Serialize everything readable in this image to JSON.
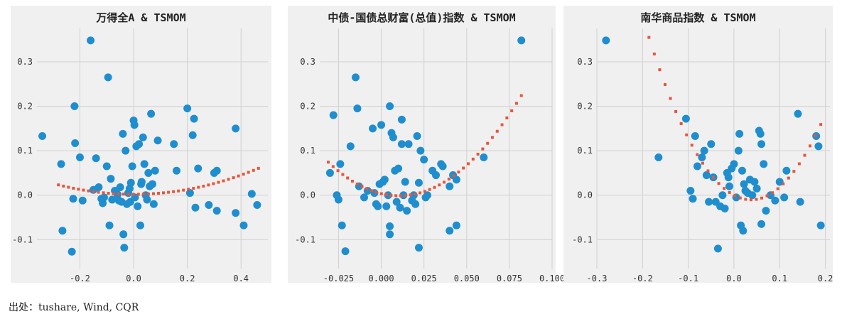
{
  "source_note": "出处：tushare, Wind, CQR",
  "colors": {
    "scatter": "#1f8ecf",
    "fit": "#e8553a"
  },
  "chart_data": [
    {
      "type": "scatter",
      "title": "万得全A & TSMOM",
      "xlim": [
        -0.36,
        0.5
      ],
      "ylim": [
        -0.165,
        0.375
      ],
      "xticks": [
        -0.2,
        0.0,
        0.2,
        0.4
      ],
      "xtick_labels": [
        "-0.2",
        "0.0",
        "0.2",
        "0.4"
      ],
      "yticks": [
        -0.1,
        0.0,
        0.1,
        0.2,
        0.3
      ],
      "ytick_labels": [
        "-0.1",
        "0.0",
        "0.1",
        "0.2",
        "0.3"
      ],
      "grid": true,
      "points": [
        [
          -0.34,
          0.133
        ],
        [
          -0.27,
          0.07
        ],
        [
          -0.265,
          -0.08
        ],
        [
          -0.23,
          -0.127
        ],
        [
          -0.225,
          -0.008
        ],
        [
          -0.22,
          0.2
        ],
        [
          -0.218,
          0.117
        ],
        [
          -0.2,
          0.085
        ],
        [
          -0.19,
          -0.012
        ],
        [
          -0.16,
          0.348
        ],
        [
          -0.15,
          0.012
        ],
        [
          -0.14,
          0.083
        ],
        [
          -0.13,
          0.018
        ],
        [
          -0.12,
          -0.008
        ],
        [
          -0.115,
          -0.018
        ],
        [
          -0.11,
          -0.005
        ],
        [
          -0.1,
          0.065
        ],
        [
          -0.095,
          0.265
        ],
        [
          -0.09,
          -0.068
        ],
        [
          -0.085,
          0.037
        ],
        [
          -0.08,
          -0.01
        ],
        [
          -0.07,
          0.01
        ],
        [
          -0.06,
          0.002
        ],
        [
          -0.055,
          -0.012
        ],
        [
          -0.05,
          0.018
        ],
        [
          -0.045,
          -0.015
        ],
        [
          -0.04,
          0.138
        ],
        [
          -0.038,
          -0.088
        ],
        [
          -0.035,
          -0.118
        ],
        [
          -0.03,
          0.1
        ],
        [
          -0.025,
          -0.02
        ],
        [
          -0.02,
          0.005
        ],
        [
          -0.015,
          0.015
        ],
        [
          -0.012,
          -0.015
        ],
        [
          -0.01,
          0.028
        ],
        [
          -0.005,
          0.065
        ],
        [
          0.0,
          0.168
        ],
        [
          0.003,
          0.158
        ],
        [
          0.005,
          -0.005
        ],
        [
          0.01,
          0.11
        ],
        [
          0.015,
          -0.025
        ],
        [
          0.02,
          0.115
        ],
        [
          0.025,
          -0.068
        ],
        [
          0.028,
          0.025
        ],
        [
          0.03,
          0.03
        ],
        [
          0.035,
          0.13
        ],
        [
          0.04,
          0.07
        ],
        [
          0.045,
          0.0
        ],
        [
          0.05,
          -0.01
        ],
        [
          0.055,
          0.05
        ],
        [
          0.06,
          0.02
        ],
        [
          0.065,
          0.183
        ],
        [
          0.07,
          0.025
        ],
        [
          0.075,
          -0.02
        ],
        [
          0.08,
          0.055
        ],
        [
          0.09,
          0.123
        ],
        [
          0.15,
          0.115
        ],
        [
          0.16,
          0.055
        ],
        [
          0.2,
          0.195
        ],
        [
          0.21,
          0.005
        ],
        [
          0.22,
          0.135
        ],
        [
          0.225,
          0.172
        ],
        [
          0.23,
          -0.028
        ],
        [
          0.24,
          0.06
        ],
        [
          0.28,
          -0.022
        ],
        [
          0.3,
          0.05
        ],
        [
          0.31,
          0.055
        ],
        [
          0.31,
          -0.035
        ],
        [
          0.38,
          0.15
        ],
        [
          0.38,
          -0.04
        ],
        [
          0.41,
          -0.068
        ],
        [
          0.44,
          0.003
        ],
        [
          0.46,
          -0.022
        ]
      ],
      "fit": {
        "x_range": [
          -0.28,
          0.465
        ],
        "coefficients": [
          0.002,
          0.0,
          0.27
        ]
      }
    },
    {
      "type": "scatter",
      "title": "中债-国债总财富(总值)指数 & TSMOM",
      "xlim": [
        -0.036,
        0.1
      ],
      "ylim": [
        -0.165,
        0.375
      ],
      "xticks": [
        -0.025,
        0.0,
        0.025,
        0.05,
        0.075,
        0.1
      ],
      "xtick_labels": [
        "-0.025",
        "0.000",
        "0.025",
        "0.050",
        "0.075",
        "0.100"
      ],
      "yticks": [
        -0.1,
        0.0,
        0.1,
        0.2,
        0.3
      ],
      "ytick_labels": [
        "-0.1",
        "0.0",
        "0.1",
        "0.2",
        "0.3"
      ],
      "grid": true,
      "points": [
        [
          -0.03,
          0.05
        ],
        [
          -0.028,
          0.18
        ],
        [
          -0.026,
          0.0
        ],
        [
          -0.025,
          -0.01
        ],
        [
          -0.024,
          0.07
        ],
        [
          -0.023,
          -0.068
        ],
        [
          -0.021,
          -0.126
        ],
        [
          -0.018,
          0.11
        ],
        [
          -0.015,
          0.265
        ],
        [
          -0.014,
          0.195
        ],
        [
          -0.013,
          0.02
        ],
        [
          -0.01,
          -0.005
        ],
        [
          -0.008,
          0.01
        ],
        [
          -0.005,
          0.15
        ],
        [
          -0.004,
          0.005
        ],
        [
          -0.003,
          -0.02
        ],
        [
          -0.002,
          -0.025
        ],
        [
          -0.001,
          0.025
        ],
        [
          0.0,
          0.158
        ],
        [
          0.001,
          0.03
        ],
        [
          0.002,
          0.035
        ],
        [
          0.003,
          -0.025
        ],
        [
          0.004,
          0.0
        ],
        [
          0.005,
          0.2
        ],
        [
          0.005,
          -0.07
        ],
        [
          0.005,
          -0.088
        ],
        [
          0.006,
          0.14
        ],
        [
          0.007,
          0.13
        ],
        [
          0.008,
          0.055
        ],
        [
          0.009,
          -0.015
        ],
        [
          0.01,
          0.06
        ],
        [
          0.011,
          -0.028
        ],
        [
          0.012,
          0.17
        ],
        [
          0.012,
          0.115
        ],
        [
          0.013,
          0.0
        ],
        [
          0.014,
          0.03
        ],
        [
          0.015,
          -0.035
        ],
        [
          0.016,
          0.115
        ],
        [
          0.018,
          -0.012
        ],
        [
          0.019,
          0.0
        ],
        [
          0.02,
          -0.02
        ],
        [
          0.021,
          0.133
        ],
        [
          0.022,
          -0.118
        ],
        [
          0.022,
          0.028
        ],
        [
          0.023,
          0.1
        ],
        [
          0.025,
          0.08
        ],
        [
          0.026,
          -0.005
        ],
        [
          0.027,
          0.0
        ],
        [
          0.03,
          0.055
        ],
        [
          0.032,
          0.045
        ],
        [
          0.035,
          0.07
        ],
        [
          0.036,
          0.065
        ],
        [
          0.04,
          0.02
        ],
        [
          0.042,
          0.045
        ],
        [
          0.04,
          -0.08
        ],
        [
          0.044,
          -0.068
        ],
        [
          0.044,
          0.035
        ],
        [
          0.06,
          0.085
        ],
        [
          0.082,
          0.348
        ]
      ],
      "fit": {
        "x_range": [
          -0.031,
          0.082
        ],
        "coefficients": [
          0.0,
          -0.48,
          44.0
        ],
        "x_center": 0.005
      }
    },
    {
      "type": "scatter",
      "title": "南华商品指数 & TSMOM",
      "xlim": [
        -0.3,
        0.21
      ],
      "ylim": [
        -0.165,
        0.375
      ],
      "xticks": [
        -0.3,
        -0.2,
        -0.1,
        0.0,
        0.1,
        0.2
      ],
      "xtick_labels": [
        "-0.3",
        "-0.2",
        "-0.1",
        "0.0",
        "0.1",
        "0.2"
      ],
      "yticks": [
        -0.1,
        0.0,
        0.1,
        0.2,
        0.3
      ],
      "ytick_labels": [
        "-0.1",
        "0.0",
        "0.1",
        "0.2",
        "0.3"
      ],
      "grid": true,
      "points": [
        [
          -0.28,
          0.348
        ],
        [
          -0.165,
          0.085
        ],
        [
          -0.105,
          0.172
        ],
        [
          -0.095,
          0.01
        ],
        [
          -0.09,
          -0.008
        ],
        [
          -0.085,
          0.133
        ],
        [
          -0.08,
          0.065
        ],
        [
          -0.07,
          0.085
        ],
        [
          -0.065,
          0.1
        ],
        [
          -0.06,
          0.045
        ],
        [
          -0.055,
          -0.015
        ],
        [
          -0.05,
          0.115
        ],
        [
          -0.045,
          0.04
        ],
        [
          -0.04,
          -0.015
        ],
        [
          -0.035,
          -0.12
        ],
        [
          -0.03,
          -0.025
        ],
        [
          -0.025,
          0.0
        ],
        [
          -0.02,
          -0.03
        ],
        [
          -0.015,
          0.05
        ],
        [
          -0.012,
          0.04
        ],
        [
          -0.01,
          0.02
        ],
        [
          -0.005,
          0.06
        ],
        [
          0.0,
          0.07
        ],
        [
          0.005,
          -0.005
        ],
        [
          0.01,
          0.1
        ],
        [
          0.012,
          0.138
        ],
        [
          0.015,
          -0.068
        ],
        [
          0.018,
          0.055
        ],
        [
          0.02,
          -0.08
        ],
        [
          0.022,
          0.025
        ],
        [
          0.025,
          0.01
        ],
        [
          0.03,
          0.005
        ],
        [
          0.035,
          0.035
        ],
        [
          0.04,
          0.0
        ],
        [
          0.045,
          0.03
        ],
        [
          0.05,
          0.015
        ],
        [
          0.055,
          0.145
        ],
        [
          0.058,
          0.138
        ],
        [
          0.06,
          0.115
        ],
        [
          0.06,
          -0.065
        ],
        [
          0.065,
          0.07
        ],
        [
          0.07,
          -0.035
        ],
        [
          0.08,
          0.0
        ],
        [
          0.09,
          -0.012
        ],
        [
          0.1,
          0.03
        ],
        [
          0.11,
          -0.005
        ],
        [
          0.115,
          0.055
        ],
        [
          0.14,
          0.183
        ],
        [
          0.145,
          -0.015
        ],
        [
          0.18,
          0.133
        ],
        [
          0.185,
          0.11
        ],
        [
          0.19,
          -0.068
        ]
      ],
      "fit": {
        "x_range": [
          -0.28,
          0.19
        ],
        "coefficients": [
          0.0,
          -0.55,
          7.3
        ]
      }
    }
  ]
}
